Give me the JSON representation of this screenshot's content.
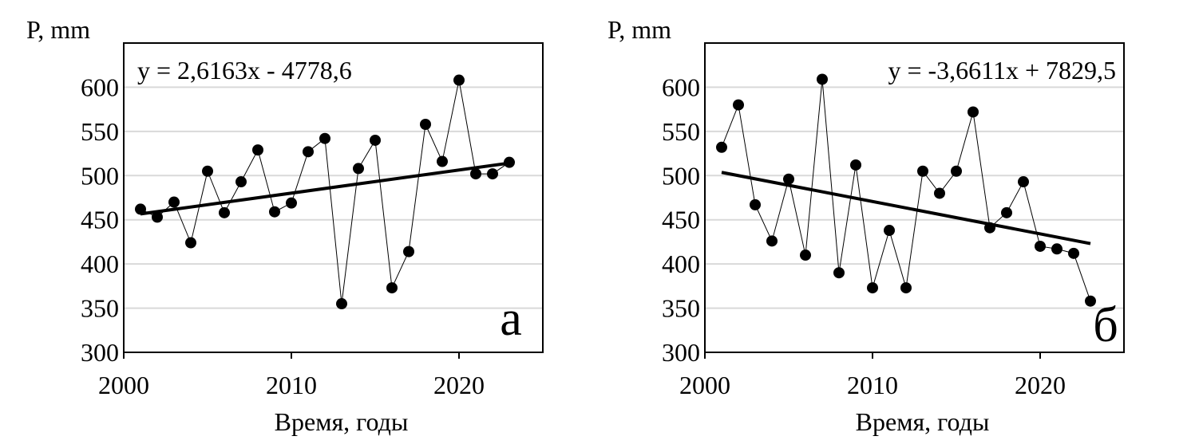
{
  "chart_data": [
    {
      "type": "scatter",
      "panel_label": "а",
      "ylabel": "P, mm",
      "xlabel": "Время, годы",
      "xlim": [
        2000,
        2025
      ],
      "ylim": [
        300,
        650
      ],
      "xticks": [
        2000,
        2010,
        2020
      ],
      "yticks": [
        300,
        350,
        400,
        450,
        500,
        550,
        600
      ],
      "grid": "horizontal",
      "series": [
        {
          "x": [
            2001,
            2002,
            2003,
            2004,
            2005,
            2006,
            2007,
            2008,
            2009,
            2010,
            2011,
            2012,
            2013,
            2014,
            2015,
            2016,
            2017,
            2018,
            2019,
            2020,
            2021,
            2022,
            2023
          ],
          "values": [
            462,
            453,
            470,
            424,
            505,
            458,
            493,
            529,
            459,
            469,
            527,
            542,
            355,
            508,
            540,
            373,
            414,
            558,
            516,
            608,
            502,
            502,
            515
          ]
        }
      ],
      "trendline": {
        "equation": "y = 2,6163x - 4778,6",
        "slope": 2.6163,
        "intercept": -4778.6,
        "x_range": [
          2001,
          2023
        ]
      }
    },
    {
      "type": "scatter",
      "panel_label": "б",
      "ylabel": "P, mm",
      "xlabel": "Время, годы",
      "xlim": [
        2000,
        2025
      ],
      "ylim": [
        300,
        650
      ],
      "xticks": [
        2000,
        2010,
        2020
      ],
      "yticks": [
        300,
        350,
        400,
        450,
        500,
        550,
        600
      ],
      "grid": "horizontal",
      "series": [
        {
          "x": [
            2001,
            2002,
            2003,
            2004,
            2005,
            2006,
            2007,
            2008,
            2009,
            2010,
            2011,
            2012,
            2013,
            2014,
            2015,
            2016,
            2017,
            2018,
            2019,
            2020,
            2021,
            2022,
            2023
          ],
          "values": [
            532,
            580,
            467,
            426,
            496,
            410,
            609,
            390,
            512,
            373,
            438,
            373,
            505,
            480,
            505,
            572,
            441,
            458,
            493,
            420,
            417,
            412,
            358
          ]
        }
      ],
      "trendline": {
        "equation": "y = -3,6611x + 7829,5",
        "slope": -3.6611,
        "intercept": 7829.5,
        "x_range": [
          2001,
          2023
        ]
      }
    }
  ]
}
